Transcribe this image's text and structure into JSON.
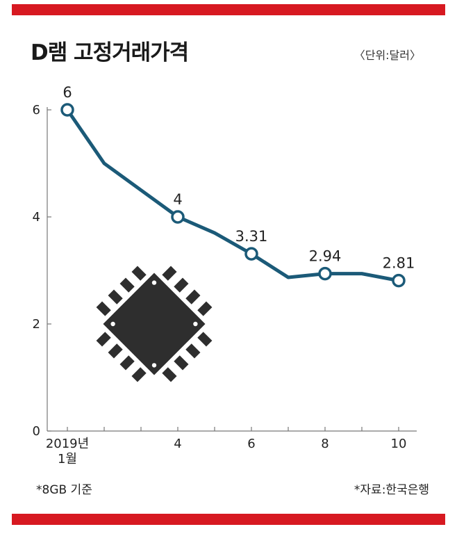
{
  "header": {
    "title": "D램 고정거래가격",
    "unit": "〈단위:달러〉"
  },
  "footer": {
    "note": "*8GB 기준",
    "source": "*자료:한국은행"
  },
  "colors": {
    "accent_bar": "#d71921",
    "line": "#1b5a78",
    "marker_fill": "#ffffff",
    "chip": "#2e2e2e"
  },
  "icons": [
    "memory-chip-icon"
  ],
  "chart_data": {
    "type": "line",
    "title": "D램 고정거래가격",
    "unit": "〈단위:달러〉",
    "x": [
      1,
      2,
      3,
      4,
      5,
      6,
      7,
      8,
      9,
      10
    ],
    "x_tick_labels": [
      {
        "x": 1,
        "lines": [
          "2019년",
          "1월"
        ]
      },
      {
        "x": 4,
        "lines": [
          "4"
        ]
      },
      {
        "x": 6,
        "lines": [
          "6"
        ]
      },
      {
        "x": 8,
        "lines": [
          "8"
        ]
      },
      {
        "x": 10,
        "lines": [
          "10"
        ]
      }
    ],
    "xlim": [
      1,
      10
    ],
    "y_ticks": [
      0,
      2,
      4,
      6
    ],
    "ylim": [
      0,
      6
    ],
    "grid": false,
    "series": [
      {
        "values": [
          6,
          5,
          4.5,
          4,
          3.7,
          3.31,
          2.87,
          2.94,
          2.94,
          2.81
        ],
        "markers_at": [
          1,
          4,
          6,
          8,
          10
        ],
        "labels": [
          {
            "x": 1,
            "text": "6"
          },
          {
            "x": 4,
            "text": "4"
          },
          {
            "x": 6,
            "text": "3.31"
          },
          {
            "x": 8,
            "text": "2.94"
          },
          {
            "x": 10,
            "text": "2.81"
          }
        ]
      }
    ]
  }
}
